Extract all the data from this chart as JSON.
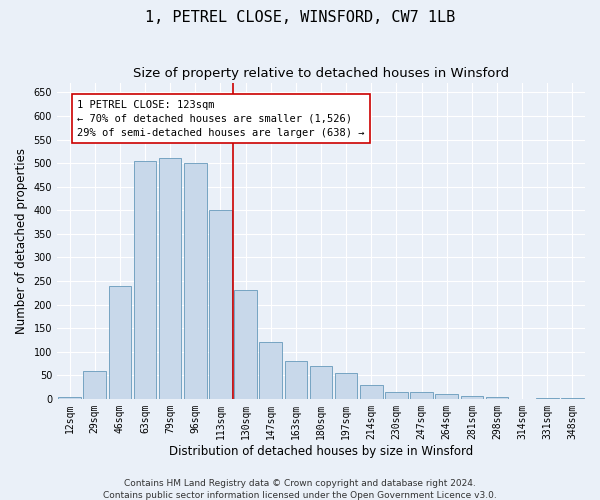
{
  "title": "1, PETREL CLOSE, WINSFORD, CW7 1LB",
  "subtitle": "Size of property relative to detached houses in Winsford",
  "xlabel": "Distribution of detached houses by size in Winsford",
  "ylabel": "Number of detached properties",
  "footnote1": "Contains HM Land Registry data © Crown copyright and database right 2024.",
  "footnote2": "Contains public sector information licensed under the Open Government Licence v3.0.",
  "bar_labels": [
    "12sqm",
    "29sqm",
    "46sqm",
    "63sqm",
    "79sqm",
    "96sqm",
    "113sqm",
    "130sqm",
    "147sqm",
    "163sqm",
    "180sqm",
    "197sqm",
    "214sqm",
    "230sqm",
    "247sqm",
    "264sqm",
    "281sqm",
    "298sqm",
    "314sqm",
    "331sqm",
    "348sqm"
  ],
  "bar_values": [
    3,
    60,
    240,
    505,
    510,
    500,
    400,
    230,
    120,
    80,
    70,
    55,
    30,
    15,
    15,
    10,
    5,
    3,
    0,
    2,
    2
  ],
  "bar_color": "#c8d8ea",
  "bar_edge_color": "#6699bb",
  "vline_x_index": 6.5,
  "annotation_title": "1 PETREL CLOSE: 123sqm",
  "annotation_line1": "← 70% of detached houses are smaller (1,526)",
  "annotation_line2": "29% of semi-detached houses are larger (638) →",
  "annotation_box_color": "#ffffff",
  "annotation_box_edge": "#cc0000",
  "vline_color": "#cc0000",
  "ylim": [
    0,
    670
  ],
  "background_color": "#eaf0f8",
  "plot_bg_color": "#eaf0f8",
  "grid_color": "#ffffff",
  "title_fontsize": 11,
  "subtitle_fontsize": 9.5,
  "axis_label_fontsize": 8.5,
  "tick_fontsize": 7,
  "annotation_fontsize": 7.5,
  "footnote_fontsize": 6.5
}
